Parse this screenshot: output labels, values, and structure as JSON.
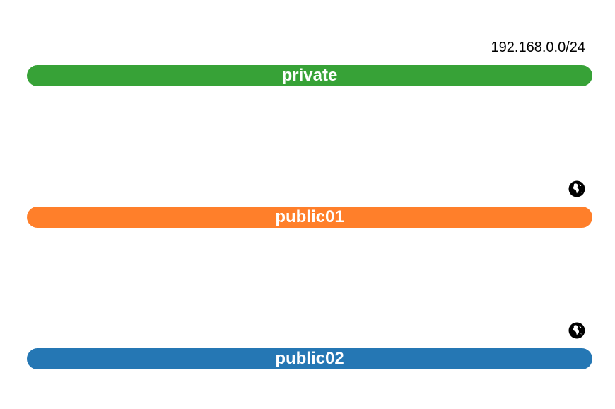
{
  "networks": [
    {
      "name": "private",
      "subnet": "192.168.0.0/24",
      "external": false,
      "color": "#37a237"
    },
    {
      "name": "public01",
      "subnet": "",
      "external": true,
      "icon": "globe-icon",
      "color": "#ff7f2a"
    },
    {
      "name": "public02",
      "subnet": "",
      "external": true,
      "icon": "globe-icon",
      "color": "#2577b4"
    }
  ]
}
